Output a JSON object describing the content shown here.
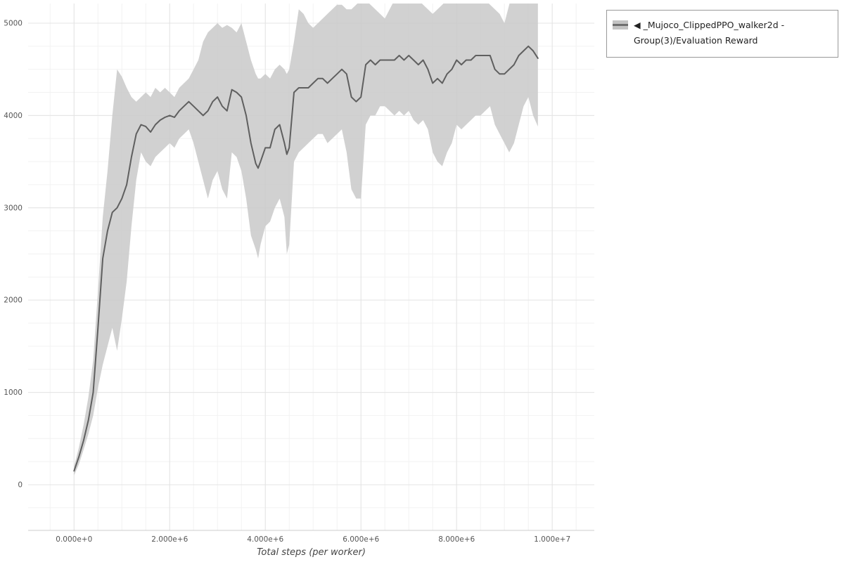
{
  "legend": {
    "series_label": "◀ _Mujoco_ClippedPPO_walker2d - Group(3)/Evaluation Reward"
  },
  "chart_data": {
    "type": "line",
    "title": "",
    "xlabel": "Total steps (per worker)",
    "ylabel": "",
    "series_name": "_Mujoco_ClippedPPO_walker2d - Group(3)/Evaluation Reward",
    "legend_position": "top-right",
    "grid": true,
    "xlim": [
      -960000,
      10880000
    ],
    "ylim": [
      -495,
      5213
    ],
    "x_axis": {
      "label": "Total steps (per worker)",
      "ticks": [
        {
          "value": 0,
          "label": "0.000e+0"
        },
        {
          "value": 2000000,
          "label": "2.000e+6"
        },
        {
          "value": 4000000,
          "label": "4.000e+6"
        },
        {
          "value": 6000000,
          "label": "6.000e+6"
        },
        {
          "value": 8000000,
          "label": "8.000e+6"
        },
        {
          "value": 10000000,
          "label": "1.000e+7"
        }
      ]
    },
    "y_axis": {
      "ticks": [
        {
          "value": 0,
          "label": "0"
        },
        {
          "value": 1000,
          "label": "1000"
        },
        {
          "value": 2000,
          "label": "2000"
        },
        {
          "value": 3000,
          "label": "3000"
        },
        {
          "value": 4000,
          "label": "4000"
        },
        {
          "value": 5000,
          "label": "5000"
        }
      ]
    },
    "colors": {
      "mean_line": "#5f5f5f",
      "band_fill": "#c9c9c9",
      "band_opacity": 0.85,
      "grid_major": "#e4e4e4",
      "grid_minor": "#f2f2f2",
      "axis_line": "#cccccc",
      "tick_text": "#555555"
    },
    "columns": [
      "step",
      "mean",
      "lower",
      "upper"
    ],
    "points": [
      [
        0,
        150,
        100,
        200
      ],
      [
        100000,
        300,
        220,
        400
      ],
      [
        200000,
        480,
        380,
        650
      ],
      [
        300000,
        700,
        550,
        950
      ],
      [
        400000,
        1000,
        750,
        1350
      ],
      [
        500000,
        1700,
        1050,
        2100
      ],
      [
        600000,
        2450,
        1300,
        2900
      ],
      [
        700000,
        2750,
        1500,
        3400
      ],
      [
        800000,
        2950,
        1700,
        4000
      ],
      [
        900000,
        3000,
        1450,
        4500
      ],
      [
        1000000,
        3100,
        1800,
        4420
      ],
      [
        1100000,
        3250,
        2200,
        4300
      ],
      [
        1200000,
        3550,
        2800,
        4200
      ],
      [
        1300000,
        3800,
        3300,
        4150
      ],
      [
        1400000,
        3900,
        3600,
        4200
      ],
      [
        1500000,
        3880,
        3500,
        4250
      ],
      [
        1600000,
        3820,
        3450,
        4200
      ],
      [
        1700000,
        3900,
        3550,
        4300
      ],
      [
        1800000,
        3950,
        3600,
        4250
      ],
      [
        1900000,
        3980,
        3650,
        4300
      ],
      [
        2000000,
        4000,
        3700,
        4250
      ],
      [
        2100000,
        3980,
        3650,
        4200
      ],
      [
        2200000,
        4050,
        3750,
        4300
      ],
      [
        2300000,
        4100,
        3800,
        4350
      ],
      [
        2400000,
        4150,
        3850,
        4400
      ],
      [
        2500000,
        4100,
        3700,
        4500
      ],
      [
        2600000,
        4050,
        3500,
        4600
      ],
      [
        2700000,
        4000,
        3300,
        4800
      ],
      [
        2800000,
        4050,
        3100,
        4900
      ],
      [
        2900000,
        4150,
        3300,
        4950
      ],
      [
        3000000,
        4200,
        3400,
        5000
      ],
      [
        3100000,
        4100,
        3200,
        4950
      ],
      [
        3200000,
        4050,
        3100,
        4980
      ],
      [
        3300000,
        4280,
        3600,
        4950
      ],
      [
        3400000,
        4250,
        3550,
        4900
      ],
      [
        3500000,
        4200,
        3400,
        5000
      ],
      [
        3600000,
        4000,
        3100,
        4800
      ],
      [
        3700000,
        3700,
        2700,
        4600
      ],
      [
        3800000,
        3480,
        2550,
        4450
      ],
      [
        3850000,
        3430,
        2450,
        4400
      ],
      [
        3900000,
        3500,
        2600,
        4400
      ],
      [
        4000000,
        3650,
        2800,
        4450
      ],
      [
        4100000,
        3650,
        2850,
        4400
      ],
      [
        4200000,
        3850,
        3000,
        4500
      ],
      [
        4300000,
        3900,
        3100,
        4550
      ],
      [
        4400000,
        3700,
        2900,
        4500
      ],
      [
        4450000,
        3580,
        2500,
        4450
      ],
      [
        4500000,
        3650,
        2600,
        4500
      ],
      [
        4600000,
        4250,
        3500,
        4800
      ],
      [
        4700000,
        4300,
        3600,
        5150
      ],
      [
        4800000,
        4300,
        3650,
        5100
      ],
      [
        4900000,
        4300,
        3700,
        5000
      ],
      [
        5000000,
        4350,
        3750,
        4950
      ],
      [
        5100000,
        4400,
        3800,
        5000
      ],
      [
        5200000,
        4400,
        3800,
        5050
      ],
      [
        5300000,
        4350,
        3700,
        5100
      ],
      [
        5400000,
        4400,
        3750,
        5150
      ],
      [
        5500000,
        4450,
        3800,
        5200
      ],
      [
        5600000,
        4500,
        3850,
        5200
      ],
      [
        5700000,
        4450,
        3600,
        5150
      ],
      [
        5800000,
        4200,
        3200,
        5150
      ],
      [
        5900000,
        4150,
        3100,
        5200
      ],
      [
        6000000,
        4200,
        3100,
        5250
      ],
      [
        6100000,
        4550,
        3900,
        5250
      ],
      [
        6200000,
        4600,
        4000,
        5200
      ],
      [
        6300000,
        4550,
        4000,
        5150
      ],
      [
        6400000,
        4600,
        4100,
        5100
      ],
      [
        6500000,
        4600,
        4100,
        5050
      ],
      [
        6600000,
        4600,
        4050,
        5150
      ],
      [
        6700000,
        4600,
        4000,
        5250
      ],
      [
        6800000,
        4650,
        4050,
        5300
      ],
      [
        6900000,
        4600,
        4000,
        5250
      ],
      [
        7000000,
        4650,
        4050,
        5300
      ],
      [
        7100000,
        4600,
        3950,
        5250
      ],
      [
        7200000,
        4550,
        3900,
        5250
      ],
      [
        7300000,
        4600,
        3950,
        5200
      ],
      [
        7400000,
        4500,
        3850,
        5150
      ],
      [
        7500000,
        4350,
        3600,
        5100
      ],
      [
        7600000,
        4400,
        3500,
        5150
      ],
      [
        7700000,
        4350,
        3450,
        5200
      ],
      [
        7800000,
        4450,
        3600,
        5250
      ],
      [
        7900000,
        4500,
        3700,
        5300
      ],
      [
        8000000,
        4600,
        3900,
        5350
      ],
      [
        8100000,
        4550,
        3850,
        5300
      ],
      [
        8200000,
        4600,
        3900,
        5250
      ],
      [
        8300000,
        4600,
        3950,
        5300
      ],
      [
        8400000,
        4650,
        4000,
        5250
      ],
      [
        8500000,
        4650,
        4000,
        5300
      ],
      [
        8600000,
        4650,
        4050,
        5250
      ],
      [
        8700000,
        4650,
        4100,
        5200
      ],
      [
        8800000,
        4500,
        3900,
        5150
      ],
      [
        8900000,
        4450,
        3800,
        5100
      ],
      [
        9000000,
        4450,
        3700,
        5000
      ],
      [
        9100000,
        4500,
        3600,
        5200
      ],
      [
        9200000,
        4550,
        3700,
        5380
      ],
      [
        9300000,
        4650,
        3900,
        5350
      ],
      [
        9400000,
        4700,
        4100,
        5300
      ],
      [
        9500000,
        4750,
        4200,
        5250
      ],
      [
        9600000,
        4700,
        4000,
        5300
      ],
      [
        9700000,
        4620,
        3880,
        5350
      ]
    ]
  }
}
